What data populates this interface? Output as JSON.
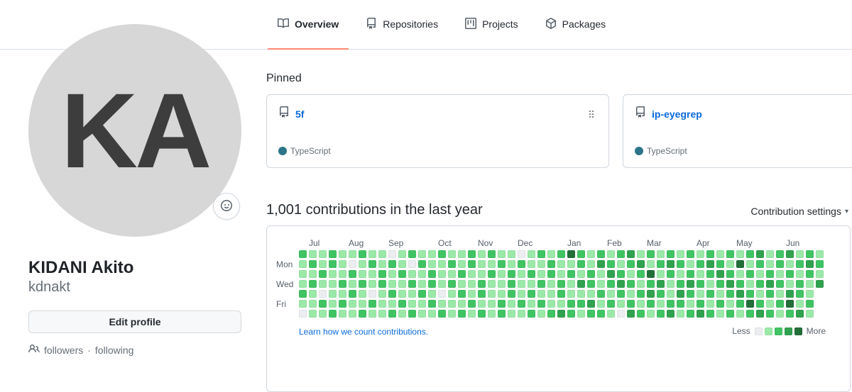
{
  "theme": {
    "accent_orange": "#fd8c73",
    "link_blue": "#0969da",
    "border_gray": "#d0d7de"
  },
  "profile": {
    "avatar_initials": "KA",
    "name": "KIDANI Akito",
    "username": "kdnakt",
    "edit_button": "Edit profile",
    "followers_label": "followers",
    "separator": "·",
    "following_label": "following"
  },
  "tabs": [
    {
      "label": "Overview",
      "active": true
    },
    {
      "label": "Repositories",
      "active": false
    },
    {
      "label": "Projects",
      "active": false
    },
    {
      "label": "Packages",
      "active": false
    }
  ],
  "pinned": {
    "heading": "Pinned",
    "repos": [
      {
        "name": "5f",
        "language": "TypeScript",
        "language_color": "#2b7489"
      },
      {
        "name": "ip-eyegrep",
        "language": "TypeScript",
        "language_color": "#2b7489"
      }
    ]
  },
  "contributions": {
    "heading": "1,001 contributions in the last year",
    "settings_label": "Contribution settings",
    "learn_link": "Learn how we count contributions.",
    "legend_less": "Less",
    "legend_more": "More"
  },
  "chart_data": {
    "type": "heatmap",
    "title": "1,001 contributions in the last year",
    "total_contributions": "1,001",
    "legend_position": "bottom-right",
    "levels": [
      "#ebedf0",
      "#9be9a8",
      "#40c463",
      "#30a14e",
      "#216e39"
    ],
    "months": [
      {
        "label": "Jul",
        "col": 1
      },
      {
        "label": "Aug",
        "col": 5
      },
      {
        "label": "Sep",
        "col": 9
      },
      {
        "label": "Oct",
        "col": 14
      },
      {
        "label": "Nov",
        "col": 18
      },
      {
        "label": "Dec",
        "col": 22
      },
      {
        "label": "Jan",
        "col": 27
      },
      {
        "label": "Feb",
        "col": 31
      },
      {
        "label": "Mar",
        "col": 35
      },
      {
        "label": "Apr",
        "col": 40
      },
      {
        "label": "May",
        "col": 44
      },
      {
        "label": "Jun",
        "col": 49
      }
    ],
    "day_labels": [
      {
        "label": "Mon",
        "row": 1
      },
      {
        "label": "Wed",
        "row": 3
      },
      {
        "label": "Fri",
        "row": 5
      }
    ],
    "weeks": [
      "2111210",
      "1212111",
      "1121021",
      "2211112",
      "1112121",
      "1021211",
      "2112112",
      "1211021",
      "1122111",
      "0211212",
      "1121121",
      "2012112",
      "1211211",
      "1122121",
      "2111012",
      "1212111",
      "1121212",
      "2211121",
      "1112212",
      "2121111",
      "1211122",
      "1122211",
      "0211121",
      "1121212",
      "2112121",
      "1221112",
      "2112213",
      "4121122",
      "2213121",
      "1122132",
      "2311212",
      "1232121",
      "2123210",
      "3212123",
      "1321212",
      "2142321",
      "1213212",
      "2321123",
      "1212321",
      "2123212",
      "1212123",
      "2321212",
      "1232121",
      "2123212",
      "1412321",
      "2121242",
      "3212123",
      "1123212",
      "2212121",
      "3121342",
      "1212213",
      "2321121",
      "1213"
    ]
  }
}
